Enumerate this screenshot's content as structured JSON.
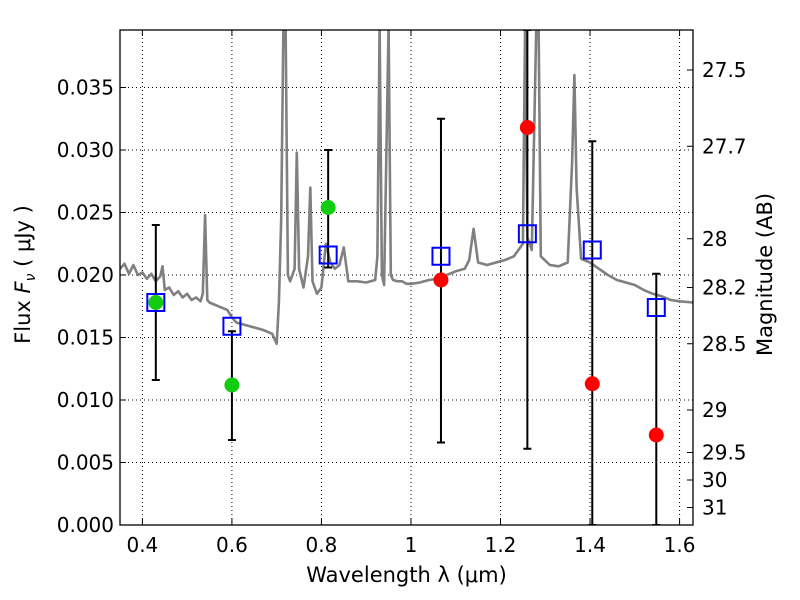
{
  "chart_data": {
    "type": "scatter",
    "title": "",
    "xlabel": "Wavelength  λ (μm)",
    "ylabel": "Flux  F_ν  ( μJy )",
    "ylabel_parts": {
      "lead": "Flux  ",
      "symbol": "F",
      "sub": "ν",
      "unit": "  ( μJy )"
    },
    "y2label": "Magnitude (AB)",
    "xlim": [
      0.35,
      1.63
    ],
    "ylim": [
      0.0,
      0.0396
    ],
    "grid": true,
    "grid_style": "dotted",
    "xticks": [
      0.4,
      0.6,
      0.8,
      1.0,
      1.2,
      1.4,
      1.6
    ],
    "xtick_labels": [
      "0.4",
      "0.6",
      "0.8",
      "1",
      "1.2",
      "1.4",
      "1.6"
    ],
    "yticks": [
      0.0,
      0.005,
      0.01,
      0.015,
      0.02,
      0.025,
      0.03,
      0.035
    ],
    "ytick_labels": [
      "0.000",
      "0.005",
      "0.010",
      "0.015",
      "0.020",
      "0.025",
      "0.030",
      "0.035"
    ],
    "y2ticks": [
      {
        "flux": 0.0364,
        "label": "27.5"
      },
      {
        "flux": 0.0303,
        "label": "27.7"
      },
      {
        "flux": 0.0229,
        "label": "28"
      },
      {
        "flux": 0.019,
        "label": "28.2"
      },
      {
        "flux": 0.0145,
        "label": "28.5"
      },
      {
        "flux": 0.0092,
        "label": "29"
      },
      {
        "flux": 0.0058,
        "label": "29.5"
      },
      {
        "flux": 0.0036,
        "label": "30"
      },
      {
        "flux": 0.0014,
        "label": "31"
      }
    ],
    "series": [
      {
        "kind": "line",
        "color": "#808080",
        "points": [
          [
            0.35,
            0.0205
          ],
          [
            0.36,
            0.0209
          ],
          [
            0.37,
            0.0201
          ],
          [
            0.38,
            0.0208
          ],
          [
            0.39,
            0.02
          ],
          [
            0.4,
            0.0202
          ],
          [
            0.41,
            0.0197
          ],
          [
            0.42,
            0.0201
          ],
          [
            0.43,
            0.0195
          ],
          [
            0.44,
            0.0199
          ],
          [
            0.445,
            0.0207
          ],
          [
            0.45,
            0.0188
          ],
          [
            0.46,
            0.019
          ],
          [
            0.47,
            0.0184
          ],
          [
            0.48,
            0.0187
          ],
          [
            0.49,
            0.0182
          ],
          [
            0.5,
            0.0185
          ],
          [
            0.51,
            0.018
          ],
          [
            0.52,
            0.0182
          ],
          [
            0.53,
            0.0179
          ],
          [
            0.535,
            0.0185
          ],
          [
            0.54,
            0.0248
          ],
          [
            0.545,
            0.018
          ],
          [
            0.55,
            0.0178
          ],
          [
            0.57,
            0.0175
          ],
          [
            0.59,
            0.0172
          ],
          [
            0.6,
            0.0166
          ],
          [
            0.61,
            0.0162
          ],
          [
            0.63,
            0.016
          ],
          [
            0.65,
            0.0158
          ],
          [
            0.67,
            0.0156
          ],
          [
            0.69,
            0.0153
          ],
          [
            0.7,
            0.0145
          ],
          [
            0.705,
            0.0178
          ],
          [
            0.71,
            0.0245
          ],
          [
            0.715,
            0.04
          ],
          [
            0.72,
            0.04
          ],
          [
            0.725,
            0.02
          ],
          [
            0.73,
            0.0195
          ],
          [
            0.74,
            0.0205
          ],
          [
            0.745,
            0.0298
          ],
          [
            0.75,
            0.0205
          ],
          [
            0.76,
            0.019
          ],
          [
            0.77,
            0.0215
          ],
          [
            0.775,
            0.027
          ],
          [
            0.78,
            0.0195
          ],
          [
            0.79,
            0.0185
          ],
          [
            0.8,
            0.019
          ],
          [
            0.81,
            0.0225
          ],
          [
            0.82,
            0.021
          ],
          [
            0.83,
            0.0205
          ],
          [
            0.84,
            0.0208
          ],
          [
            0.85,
            0.0222
          ],
          [
            0.86,
            0.0195
          ],
          [
            0.88,
            0.0195
          ],
          [
            0.9,
            0.0194
          ],
          [
            0.92,
            0.0196
          ],
          [
            0.925,
            0.0215
          ],
          [
            0.93,
            0.04
          ],
          [
            0.935,
            0.02
          ],
          [
            0.94,
            0.0192
          ],
          [
            0.95,
            0.04
          ],
          [
            0.955,
            0.02
          ],
          [
            0.96,
            0.0196
          ],
          [
            0.97,
            0.0195
          ],
          [
            0.98,
            0.0195
          ],
          [
            0.99,
            0.0193
          ],
          [
            1.0,
            0.0193
          ],
          [
            1.02,
            0.0194
          ],
          [
            1.04,
            0.0196
          ],
          [
            1.06,
            0.0197
          ],
          [
            1.08,
            0.02
          ],
          [
            1.1,
            0.0203
          ],
          [
            1.12,
            0.0205
          ],
          [
            1.13,
            0.0212
          ],
          [
            1.14,
            0.0237
          ],
          [
            1.15,
            0.021
          ],
          [
            1.17,
            0.0208
          ],
          [
            1.19,
            0.021
          ],
          [
            1.21,
            0.0212
          ],
          [
            1.23,
            0.0215
          ],
          [
            1.25,
            0.0225
          ],
          [
            1.255,
            0.04
          ],
          [
            1.26,
            0.023
          ],
          [
            1.27,
            0.022
          ],
          [
            1.28,
            0.04
          ],
          [
            1.285,
            0.04
          ],
          [
            1.29,
            0.0215
          ],
          [
            1.31,
            0.0208
          ],
          [
            1.33,
            0.0207
          ],
          [
            1.35,
            0.021
          ],
          [
            1.36,
            0.029
          ],
          [
            1.365,
            0.036
          ],
          [
            1.37,
            0.027
          ],
          [
            1.38,
            0.0213
          ],
          [
            1.4,
            0.021
          ],
          [
            1.42,
            0.0205
          ],
          [
            1.44,
            0.02
          ],
          [
            1.46,
            0.0196
          ],
          [
            1.48,
            0.0194
          ],
          [
            1.5,
            0.0192
          ],
          [
            1.52,
            0.0188
          ],
          [
            1.54,
            0.0185
          ],
          [
            1.56,
            0.0183
          ],
          [
            1.58,
            0.018
          ],
          [
            1.6,
            0.0179
          ],
          [
            1.63,
            0.0178
          ]
        ]
      },
      {
        "kind": "errorbar",
        "color": "#000000",
        "bars": [
          {
            "x": 0.43,
            "ylo": 0.0116,
            "yhi": 0.024
          },
          {
            "x": 0.6,
            "ylo": 0.0068,
            "yhi": 0.0155
          },
          {
            "x": 0.815,
            "ylo": 0.0206,
            "yhi": 0.03
          },
          {
            "x": 1.067,
            "ylo": 0.0066,
            "yhi": 0.0325
          },
          {
            "x": 1.26,
            "ylo": 0.0061,
            "yhi": 0.0396
          },
          {
            "x": 1.405,
            "ylo": 0.0,
            "yhi": 0.0307
          },
          {
            "x": 1.548,
            "ylo": 0.0,
            "yhi": 0.0201
          }
        ]
      },
      {
        "kind": "square-markers",
        "color": "#0000ff",
        "points": [
          [
            0.43,
            0.0178
          ],
          [
            0.6,
            0.0159
          ],
          [
            0.815,
            0.0216
          ],
          [
            1.067,
            0.0215
          ],
          [
            1.26,
            0.0233
          ],
          [
            1.405,
            0.022
          ],
          [
            1.548,
            0.0174
          ]
        ]
      },
      {
        "kind": "circle-markers",
        "color": "#11cc11",
        "points": [
          [
            0.43,
            0.0178
          ],
          [
            0.6,
            0.0112
          ],
          [
            0.815,
            0.0254
          ]
        ]
      },
      {
        "kind": "circle-markers",
        "color": "#ff0000",
        "points": [
          [
            1.067,
            0.0196
          ],
          [
            1.26,
            0.0318
          ],
          [
            1.405,
            0.0113
          ],
          [
            1.548,
            0.0072
          ]
        ]
      }
    ]
  }
}
